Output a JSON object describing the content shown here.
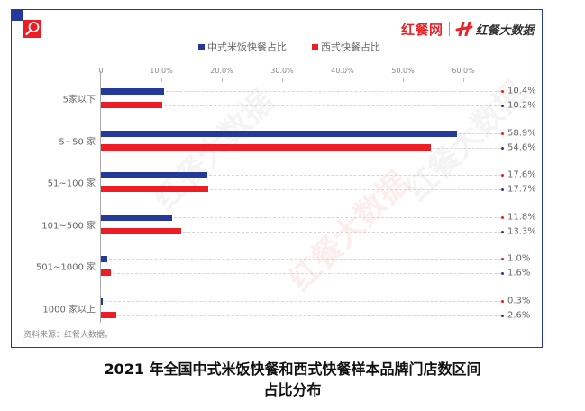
{
  "brand": {
    "left_text": "红餐网",
    "right_text": "红餐大数据",
    "accent_red": "#e8242b",
    "accent_blue": "#24399a"
  },
  "legend": [
    {
      "label": "中式米饭快餐占比",
      "color": "#24399a"
    },
    {
      "label": "西式快餐占比",
      "color": "#ee1c25"
    }
  ],
  "axis": {
    "ticks": [
      "0",
      "10.0%",
      "20.0%",
      "30.0%",
      "40.0%",
      "50.0%",
      "60.0%"
    ]
  },
  "rows": [
    {
      "category": "5家以下",
      "chinese_label": "10.4%",
      "western_label": "10.2%"
    },
    {
      "category": "5~50 家",
      "chinese_label": "58.9%",
      "western_label": "54.6%"
    },
    {
      "category": "51~100 家",
      "chinese_label": "17.6%",
      "western_label": "17.7%"
    },
    {
      "category": "101~500 家",
      "chinese_label": "11.8%",
      "western_label": "13.3%"
    },
    {
      "category": "501~1000 家",
      "chinese_label": "1.0%",
      "western_label": "1.6%"
    },
    {
      "category": "1000 家以上",
      "chinese_label": "0.3%",
      "western_label": "2.6%"
    }
  ],
  "watermark_text": "红餐大数据",
  "source": "资料来源：红餐大数据。",
  "caption": {
    "line1": "2021 年全国中式米饭快餐和西式快餐样本品牌门店数区间",
    "line2": "占比分布"
  },
  "chart_data": {
    "type": "bar",
    "orientation": "horizontal",
    "title": "2021 年全国中式米饭快餐和西式快餐样本品牌门店数区间占比分布",
    "categories": [
      "5家以下",
      "5~50 家",
      "51~100 家",
      "101~500 家",
      "501~1000 家",
      "1000 家以上"
    ],
    "series": [
      {
        "name": "中式米饭快餐占比",
        "color": "#24399a",
        "values": [
          10.4,
          58.9,
          17.6,
          11.8,
          1.0,
          0.3
        ]
      },
      {
        "name": "西式快餐占比",
        "color": "#ee1c25",
        "values": [
          10.2,
          54.6,
          17.7,
          13.3,
          1.6,
          2.6
        ]
      }
    ],
    "xlabel": "",
    "ylabel": "",
    "xlim": [
      0,
      60
    ],
    "x_ticks": [
      "0",
      "10.0%",
      "20.0%",
      "30.0%",
      "40.0%",
      "50.0%",
      "60.0%"
    ],
    "value_format": "percent",
    "legend_position": "top",
    "grid": false,
    "source": "资料来源：红餐大数据。"
  }
}
